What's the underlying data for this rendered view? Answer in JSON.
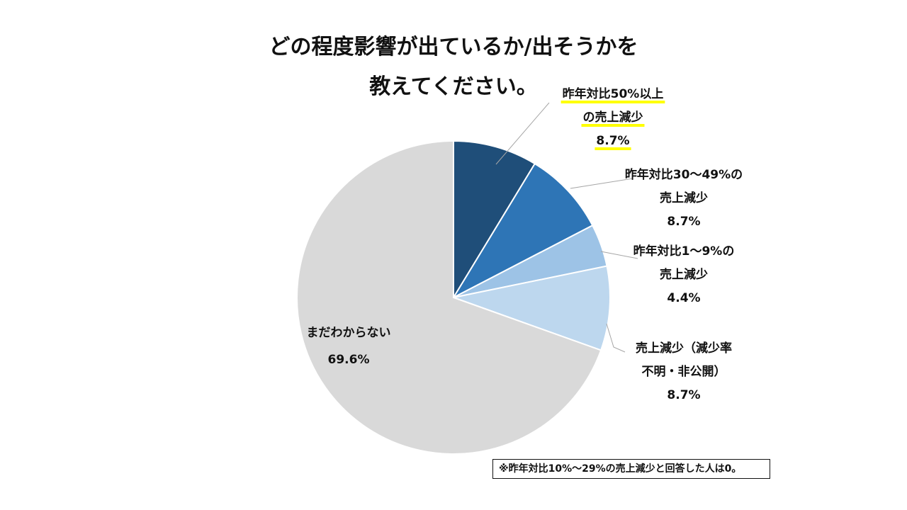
{
  "chart_data": {
    "type": "pie",
    "title": [
      "どの程度影響が出ているか/出そうかを",
      "教えてください。"
    ],
    "start_angle_deg": 0,
    "direction": "clockwise",
    "slices": [
      {
        "lines": [
          "昨年対比50%以上",
          "の売上減少"
        ],
        "value_label": "8.7%",
        "value": 8.7,
        "color": "#1F4E79",
        "highlight": true
      },
      {
        "lines": [
          "昨年対比30～49%の",
          "売上減少"
        ],
        "value_label": "8.7%",
        "value": 8.7,
        "color": "#2E75B6",
        "highlight": false
      },
      {
        "lines": [
          "昨年対比1～9%の",
          "売上減少"
        ],
        "value_label": "4.4%",
        "value": 4.4,
        "color": "#9DC3E6",
        "highlight": false
      },
      {
        "lines": [
          "売上減少（減少率",
          "不明・非公開）"
        ],
        "value_label": "8.7%",
        "value": 8.7,
        "color": "#BDD7EE",
        "highlight": false
      },
      {
        "lines": [
          "まだわからない"
        ],
        "value_label": "69.6%",
        "value": 69.6,
        "color": "#D9D9D9",
        "highlight": false
      }
    ],
    "highlight_color": "#FFFF00",
    "note": "※昨年対比10%～29%の売上減少と回答した人は0。"
  }
}
